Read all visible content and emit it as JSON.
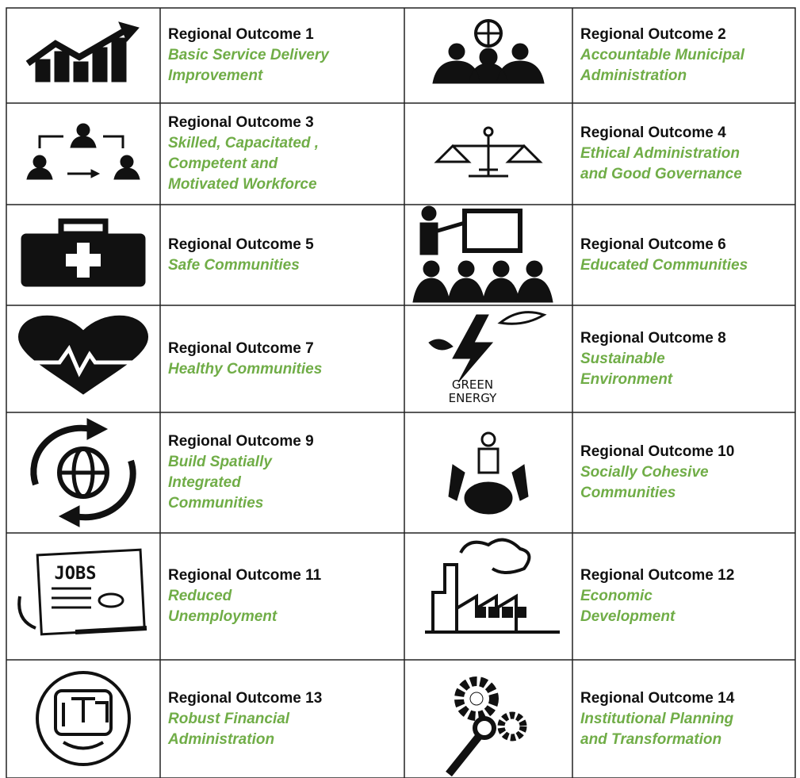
{
  "outcomes": [
    {
      "title": "Regional Outcome 1",
      "lines": [
        "Basic Service Delivery",
        "Improvement"
      ]
    },
    {
      "title": "Regional Outcome 2",
      "lines": [
        "Accountable Municipal",
        "Administration"
      ]
    },
    {
      "title": "Regional Outcome 3",
      "lines": [
        "Skilled, Capacitated ,",
        "Competent and",
        "Motivated Workforce"
      ]
    },
    {
      "title": "Regional Outcome 4",
      "lines": [
        "Ethical Administration",
        "and Good Governance"
      ]
    },
    {
      "title": "Regional Outcome 5",
      "lines": [
        "Safe Communities"
      ]
    },
    {
      "title": "Regional Outcome 6",
      "lines": [
        "Educated Communities"
      ]
    },
    {
      "title": "Regional Outcome 7",
      "lines": [
        "Healthy Communities"
      ]
    },
    {
      "title": "Regional Outcome 8",
      "lines": [
        "Sustainable",
        "Environment"
      ]
    },
    {
      "title": "Regional Outcome 9",
      "lines": [
        "Build Spatially",
        "Integrated",
        "Communities"
      ]
    },
    {
      "title": "Regional Outcome 10",
      "lines": [
        "Socially Cohesive",
        "Communities"
      ]
    },
    {
      "title": "Regional Outcome 11",
      "lines": [
        "Reduced",
        "Unemployment"
      ]
    },
    {
      "title": "Regional Outcome 12",
      "lines": [
        "Economic",
        "Development"
      ]
    },
    {
      "title": "Regional Outcome 13",
      "lines": [
        "Robust Financial",
        "Administration"
      ]
    },
    {
      "title": "Regional Outcome 14",
      "lines": [
        "Institutional Planning",
        "and Transformation"
      ]
    }
  ],
  "icon_texts": {
    "energy": [
      "GREEN",
      "ENERGY"
    ],
    "jobs": "JOBS"
  }
}
